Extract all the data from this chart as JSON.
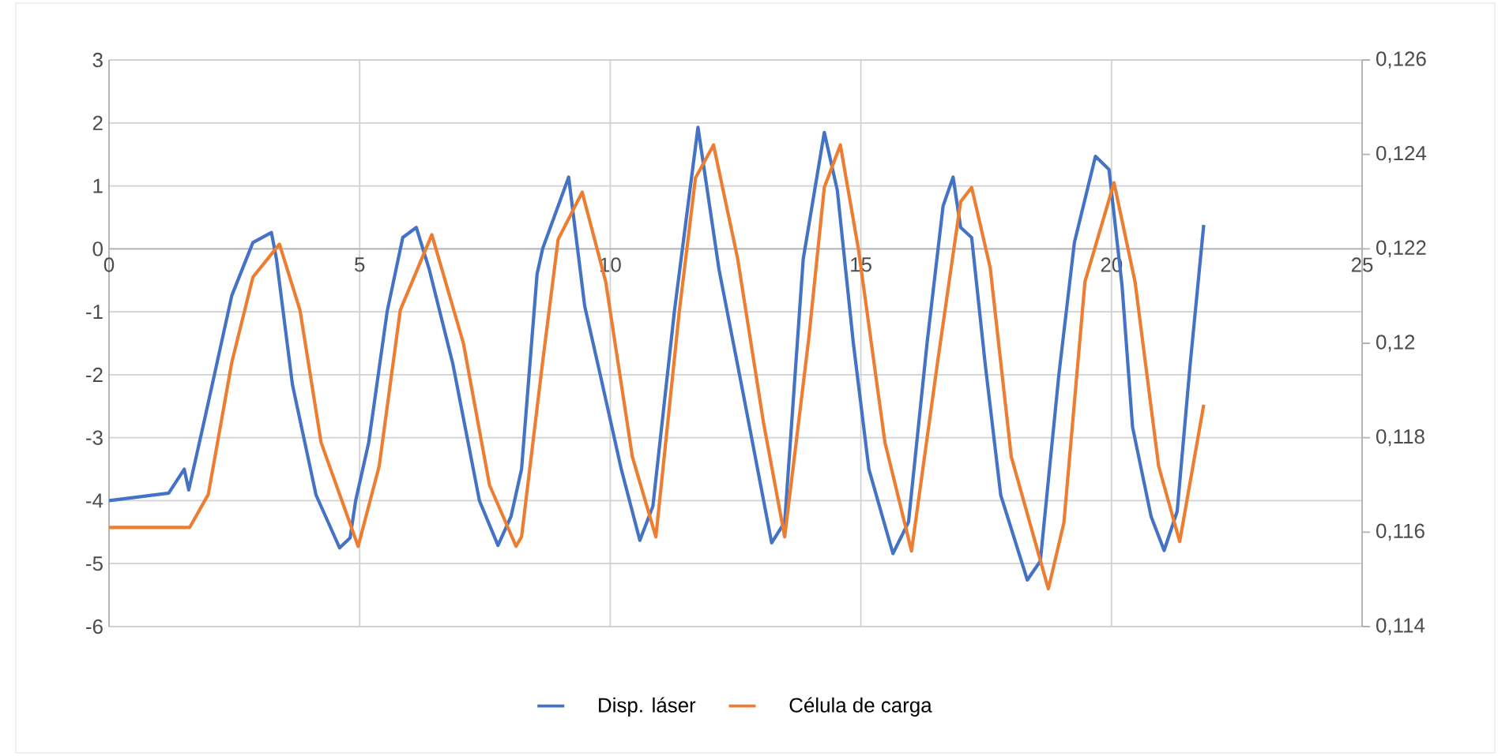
{
  "chart_data": {
    "type": "line",
    "xlim": [
      0,
      25
    ],
    "xticks": [
      0,
      5,
      10,
      15,
      20,
      25
    ],
    "ylim": [
      -6,
      3
    ],
    "yticks": [
      -6,
      -5,
      -4,
      -3,
      -2,
      -1,
      0,
      1,
      2,
      3
    ],
    "y2lim": [
      0.114,
      0.126
    ],
    "y2ticks": [
      {
        "value": 0.114,
        "label": "0,114"
      },
      {
        "value": 0.116,
        "label": "0,116"
      },
      {
        "value": 0.118,
        "label": "0,118"
      },
      {
        "value": 0.12,
        "label": "0,12"
      },
      {
        "value": 0.122,
        "label": "0,122"
      },
      {
        "value": 0.124,
        "label": "0,124"
      },
      {
        "value": 0.126,
        "label": "0,126"
      }
    ],
    "grid": true,
    "legend": "bottom",
    "series": [
      {
        "name": "Disp. láser",
        "color": "#4472c4",
        "x": [
          0,
          1.19,
          1.5,
          1.59,
          1.92,
          2.45,
          2.87,
          3.24,
          3.34,
          3.66,
          4.13,
          4.6,
          4.81,
          4.92,
          5.18,
          5.55,
          5.86,
          6.13,
          6.39,
          6.86,
          7.39,
          7.76,
          8.02,
          8.23,
          8.54,
          8.65,
          9.17,
          9.49,
          9.8,
          10.22,
          10.59,
          10.85,
          11.28,
          11.75,
          12.17,
          12.64,
          13.22,
          13.48,
          13.85,
          14.27,
          14.53,
          14.85,
          15.16,
          15.64,
          15.95,
          16.32,
          16.64,
          16.84,
          16.99,
          17.21,
          17.48,
          17.79,
          18.32,
          18.58,
          18.95,
          19.26,
          19.68,
          19.95,
          20.21,
          20.42,
          20.79,
          21.05,
          21.31,
          21.57,
          21.84
        ],
        "values": [
          -4.0,
          -3.88,
          -3.5,
          -3.83,
          -2.66,
          -0.74,
          0.1,
          0.26,
          -0.16,
          -2.16,
          -3.91,
          -4.75,
          -4.59,
          -4.0,
          -3.08,
          -0.99,
          0.18,
          0.34,
          -0.33,
          -1.83,
          -4.0,
          -4.71,
          -4.25,
          -3.5,
          -0.4,
          0.0,
          1.14,
          -0.91,
          -2.0,
          -3.5,
          -4.63,
          -4.09,
          -0.99,
          1.93,
          -0.33,
          -2.25,
          -4.67,
          -4.34,
          -0.16,
          1.85,
          0.93,
          -1.5,
          -3.5,
          -4.84,
          -4.34,
          -1.5,
          0.68,
          1.14,
          0.34,
          0.18,
          -1.83,
          -3.91,
          -5.26,
          -4.96,
          -2.0,
          0.1,
          1.47,
          1.26,
          -0.58,
          -2.83,
          -4.25,
          -4.79,
          -4.17,
          -1.83,
          0.38
        ]
      },
      {
        "name": "Célula de carga",
        "color": "#ed7d31",
        "axis": "y2",
        "x": [
          0,
          1.61,
          1.98,
          2.45,
          2.87,
          3.4,
          3.81,
          4.23,
          4.97,
          5.39,
          5.81,
          6.44,
          7.07,
          7.59,
          8.12,
          8.23,
          8.65,
          8.96,
          9.44,
          9.91,
          10.44,
          10.91,
          11.38,
          11.7,
          12.06,
          12.54,
          13.06,
          13.48,
          13.96,
          14.27,
          14.59,
          14.95,
          15.48,
          16.01,
          16.53,
          16.99,
          17.21,
          17.58,
          18.0,
          18.74,
          19.05,
          19.47,
          20.05,
          20.47,
          20.94,
          21.36,
          21.84
        ],
        "values": [
          0.1161,
          0.1161,
          0.1168,
          0.1196,
          0.1214,
          0.1221,
          0.1207,
          0.1179,
          0.1157,
          0.1174,
          0.1207,
          0.1223,
          0.12,
          0.117,
          0.1157,
          0.1159,
          0.1196,
          0.1222,
          0.1232,
          0.1213,
          0.1176,
          0.1159,
          0.1207,
          0.1235,
          0.1242,
          0.1218,
          0.1183,
          0.1159,
          0.1201,
          0.1233,
          0.1242,
          0.122,
          0.1179,
          0.1156,
          0.1196,
          0.123,
          0.1233,
          0.1216,
          0.1176,
          0.1148,
          0.1162,
          0.1213,
          0.1234,
          0.1213,
          0.1174,
          0.1158,
          0.1187
        ]
      }
    ]
  }
}
